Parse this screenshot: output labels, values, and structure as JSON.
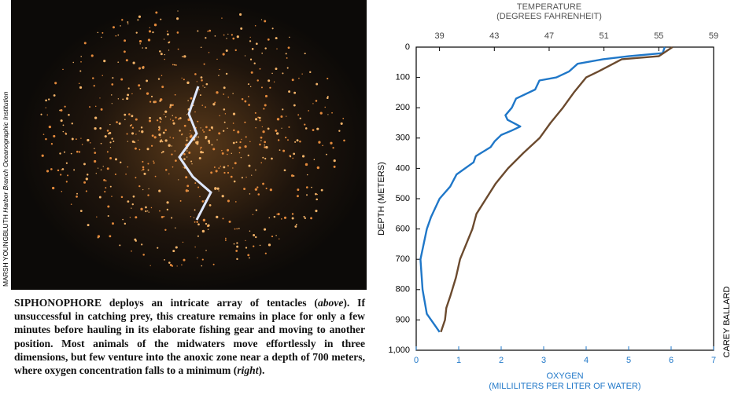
{
  "photo_credit": [
    "MARSH YOUNGBLUTH ",
    "Harbor Branch Oceanographic Institution"
  ],
  "caption": [
    "SIPHONOPHORE deploys an intricate array of tentacles (",
    "above",
    "). If unsuccessful in catching prey, this creature remains in place for only a few minutes before hauling in its elaborate fishing gear and moving to another position. Most animals of the midwaters move effortlessly in three dimensions, but few venture into the anoxic zone near a depth of 700 meters, where oxygen concentration falls to a minimum (",
    "right",
    ")."
  ],
  "chart_credit": "CAREY BALLARD",
  "chart_data": {
    "type": "line",
    "x_label": [
      "OXYGEN",
      "(MILLILITERS PER LITER OF WATER)"
    ],
    "x2_label": [
      "TEMPERATURE",
      "(DEGREES FAHRENHEIT)"
    ],
    "y_label": "DEPTH (METERS)",
    "xlim": [
      0,
      7
    ],
    "xticks": [
      0,
      1,
      2,
      3,
      4,
      5,
      6,
      7
    ],
    "x2lim": [
      37.3,
      59
    ],
    "x2ticks": [
      39,
      43,
      47,
      51,
      55,
      59
    ],
    "ylim": [
      1000,
      0
    ],
    "yticks": [
      0,
      100,
      200,
      300,
      400,
      500,
      600,
      700,
      800,
      900,
      {
        "value": 1000,
        "label": "1,000"
      }
    ],
    "series": [
      {
        "color": "#1f77c8",
        "x": [
          5.85,
          5.8,
          5.0,
          4.4,
          3.8,
          3.6,
          3.3,
          2.9,
          2.8,
          2.35,
          2.25,
          2.1,
          2.15,
          2.45,
          2.25,
          2.0,
          1.85,
          1.75,
          1.4,
          1.35,
          0.95,
          0.8,
          0.55,
          0.35,
          0.25,
          0.1,
          0.15,
          0.25,
          0.45,
          0.55
        ],
        "y": [
          0,
          20,
          30,
          40,
          55,
          80,
          100,
          110,
          140,
          170,
          200,
          225,
          240,
          262,
          275,
          290,
          310,
          330,
          360,
          380,
          420,
          460,
          500,
          560,
          600,
          700,
          800,
          880,
          920,
          940
        ]
      },
      {
        "color": "#6b4a2e",
        "axis": "x2",
        "x": [
          56.0,
          55.0,
          52.3,
          50.6,
          49.7,
          48.8,
          48.0,
          47.1,
          46.3,
          45.1,
          44.0,
          43.1,
          42.4,
          41.7,
          41.4,
          40.5,
          40.2,
          39.8,
          39.5,
          39.4,
          39.1
        ],
        "y": [
          0,
          30,
          40,
          80,
          100,
          150,
          200,
          250,
          300,
          350,
          400,
          450,
          500,
          550,
          600,
          700,
          760,
          820,
          860,
          900,
          940
        ]
      }
    ]
  }
}
